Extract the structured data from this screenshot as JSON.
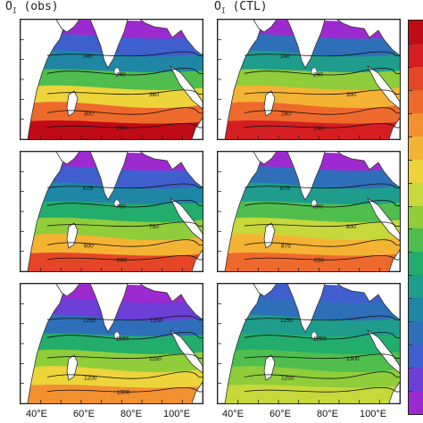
{
  "titles": {
    "left": "O",
    "left_sub": "I",
    "left_rest": "(obs)",
    "right": "O",
    "right_sub": "I",
    "right_rest": "(CTL)"
  },
  "x_ticks": [
    "40°E",
    "60°E",
    "80°E",
    "100°E"
  ],
  "colors": [
    "#9d2ad0",
    "#6c3fd6",
    "#3f5fcf",
    "#2f6fb9",
    "#1f86a6",
    "#1e9c8c",
    "#23ad6c",
    "#4fbe4f",
    "#8fcd3a",
    "#c6d83a",
    "#ecd43a",
    "#f5b334",
    "#f39030",
    "#ee6a2c",
    "#e64628",
    "#d41e22",
    "#c00a18"
  ],
  "panels": [
    {
      "id": "r1-obs",
      "bands": [
        0.1,
        0.25,
        0.45,
        0.7,
        0.92
      ],
      "labels": [
        "340",
        "240",
        "360",
        "300",
        "200"
      ]
    },
    {
      "id": "r1-ctl",
      "bands": [
        0.1,
        0.28,
        0.5,
        0.72,
        0.9
      ],
      "labels": [
        "240",
        "240",
        "300",
        "260",
        "240"
      ]
    },
    {
      "id": "r2-obs",
      "bands": [
        0.08,
        0.22,
        0.5,
        0.72,
        0.9
      ],
      "labels": [
        "675",
        "700",
        "750",
        "600",
        "800"
      ]
    },
    {
      "id": "r2-ctl",
      "bands": [
        0.06,
        0.25,
        0.55,
        0.78,
        0.92
      ],
      "labels": [
        "675",
        "800",
        "800",
        "875",
        "650"
      ]
    },
    {
      "id": "r3-obs",
      "bands": [
        0.05,
        0.2,
        0.48,
        0.72,
        0.92
      ],
      "labels": [
        "1250",
        "1100",
        "1150",
        "1200",
        "1300",
        "1250"
      ]
    },
    {
      "id": "r3-ctl",
      "bands": [
        0.05,
        0.25,
        0.55,
        0.8,
        0.95
      ],
      "labels": [
        "1250",
        "1250",
        "1300",
        "1250"
      ]
    }
  ]
}
